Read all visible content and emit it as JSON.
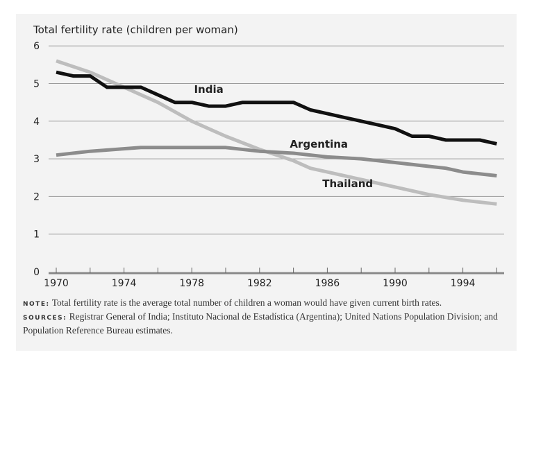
{
  "chart_data": {
    "type": "line",
    "title": "Total fertility rate (children per woman)",
    "xlabel": "",
    "ylabel": "Total fertility rate (children per woman)",
    "xlim": [
      1970,
      1996
    ],
    "ylim": [
      0,
      6
    ],
    "yticks": [
      0,
      1,
      2,
      3,
      4,
      5,
      6
    ],
    "xticks": [
      1970,
      1974,
      1978,
      1982,
      1986,
      1990,
      1994
    ],
    "grid": true,
    "series": [
      {
        "name": "India",
        "color": "#111111",
        "x": [
          1970,
          1971,
          1972,
          1973,
          1974,
          1975,
          1976,
          1977,
          1978,
          1979,
          1980,
          1981,
          1982,
          1983,
          1984,
          1985,
          1986,
          1987,
          1988,
          1989,
          1990,
          1991,
          1992,
          1993,
          1994,
          1995,
          1996
        ],
        "y": [
          5.3,
          5.2,
          5.2,
          4.9,
          4.9,
          4.9,
          4.7,
          4.5,
          4.5,
          4.4,
          4.4,
          4.5,
          4.5,
          4.5,
          4.5,
          4.3,
          4.2,
          4.1,
          4.0,
          3.9,
          3.8,
          3.6,
          3.6,
          3.5,
          3.5,
          3.5,
          3.4
        ]
      },
      {
        "name": "Argentina",
        "color": "#8c8c8c",
        "x": [
          1970,
          1972,
          1975,
          1980,
          1982,
          1984,
          1986,
          1988,
          1990,
          1992,
          1993,
          1994,
          1996
        ],
        "y": [
          3.1,
          3.2,
          3.3,
          3.3,
          3.2,
          3.15,
          3.05,
          3.0,
          2.9,
          2.8,
          2.75,
          2.65,
          2.55
        ]
      },
      {
        "name": "Thailand",
        "color": "#bdbdbd",
        "x": [
          1970,
          1972,
          1974,
          1976,
          1978,
          1980,
          1982,
          1984,
          1985,
          1986,
          1988,
          1990,
          1992,
          1994,
          1996
        ],
        "y": [
          5.6,
          5.3,
          4.9,
          4.5,
          4.0,
          3.6,
          3.25,
          2.95,
          2.75,
          2.65,
          2.45,
          2.25,
          2.05,
          1.9,
          1.8
        ]
      }
    ],
    "series_labels": [
      {
        "text": "India",
        "x": 1979,
        "y": 4.75
      },
      {
        "text": "Argentina",
        "x": 1985.5,
        "y": 3.3
      },
      {
        "text": "Thailand",
        "x": 1987.2,
        "y": 2.25
      }
    ]
  },
  "notes": {
    "note_label": "NOTE:",
    "note_text": "Total fertility rate is the average total number of children a woman would have given current birth rates.",
    "sources_label": "SOURCES:",
    "sources_text": "Registrar General of India; Instituto Nacional de Estadística (Argentina); United Nations Population Division; and Population Reference Bureau estimates."
  }
}
